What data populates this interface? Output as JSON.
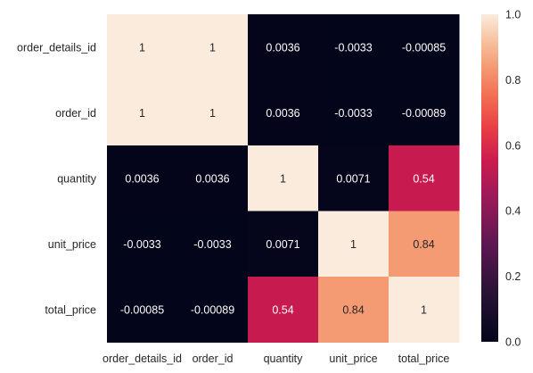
{
  "chart_data": {
    "type": "heatmap",
    "title": "",
    "xlabel": "",
    "ylabel": "",
    "x_labels": [
      "order_details_id",
      "order_id",
      "quantity",
      "unit_price",
      "total_price"
    ],
    "y_labels": [
      "order_details_id",
      "order_id",
      "quantity",
      "unit_price",
      "total_price"
    ],
    "values": [
      [
        1,
        1,
        0.0036,
        -0.0033,
        -0.00085
      ],
      [
        1,
        1,
        0.0036,
        -0.0033,
        -0.00089
      ],
      [
        0.0036,
        0.0036,
        1,
        0.0071,
        0.54
      ],
      [
        -0.0033,
        -0.0033,
        0.0071,
        1,
        0.84
      ],
      [
        -0.00085,
        -0.00089,
        0.54,
        0.84,
        1
      ]
    ],
    "annotations": [
      [
        "1",
        "1",
        "0.0036",
        "-0.0033",
        "-0.00085"
      ],
      [
        "1",
        "1",
        "0.0036",
        "-0.0033",
        "-0.00089"
      ],
      [
        "0.0036",
        "0.0036",
        "1",
        "0.0071",
        "0.54"
      ],
      [
        "-0.0033",
        "-0.0033",
        "0.0071",
        "1",
        "0.84"
      ],
      [
        "-0.00085",
        "-0.00089",
        "0.54",
        "0.84",
        "1"
      ]
    ],
    "colorbar": {
      "range": [
        0.0,
        1.0
      ],
      "ticks": [
        0.0,
        0.2,
        0.4,
        0.6,
        0.8,
        1.0
      ],
      "tick_labels": [
        "0.0",
        "0.2",
        "0.4",
        "0.6",
        "0.8",
        "1.0"
      ],
      "colormap": "rocket"
    },
    "grid": false
  }
}
